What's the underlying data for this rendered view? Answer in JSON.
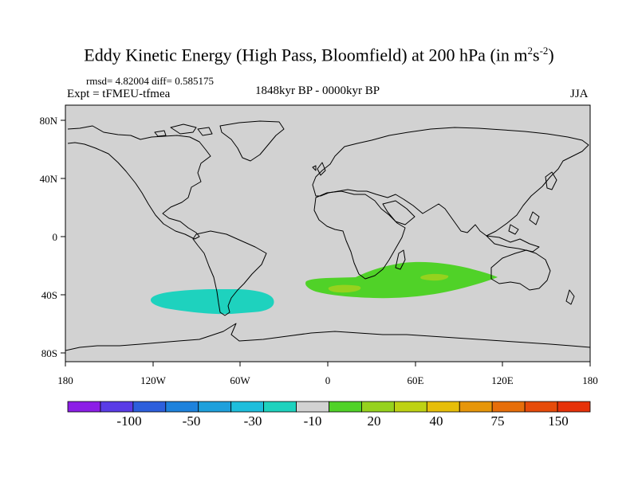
{
  "title": {
    "prefix": "Eddy Kinetic Energy (High Pass, Bloomfield) at 200 hPa (in m",
    "sup1": "2",
    "mid": "s",
    "sup2": "-2",
    "suffix": ")"
  },
  "stats": "rmsd= 4.82004 diff= 0.585175",
  "expt": "Expt = tFMEU-tfmea",
  "period": "1848kyr BP - 0000kyr BP",
  "season": "JJA",
  "axes": {
    "x_ticks": [
      "180",
      "120W",
      "60W",
      "0",
      "60E",
      "120E",
      "180"
    ],
    "y_ticks": [
      "80N",
      "40N",
      "0",
      "40S",
      "80S"
    ]
  },
  "colorbar": {
    "colors": [
      "#8c1ee6",
      "#5a3ce6",
      "#2d5fdc",
      "#1e82dc",
      "#1ea0dc",
      "#1ebedc",
      "#1ed2be",
      "#d2d2d2",
      "#50d228",
      "#96d21e",
      "#bed214",
      "#e6be0a",
      "#e6960a",
      "#e66e0a",
      "#e64b0a",
      "#e6320a"
    ],
    "labels": [
      "-100",
      "-50",
      "-30",
      "-10",
      "20",
      "40",
      "75",
      "150"
    ]
  },
  "anomalies": [
    {
      "name": "south-atlantic-pacific-negative",
      "value_range": "-10 to -30",
      "color": "#1ed2be"
    },
    {
      "name": "indian-ocean-positive",
      "value_range": "10 to 20",
      "color": "#50d228"
    },
    {
      "name": "indian-ocean-positive-core",
      "value_range": "20 to 40",
      "color": "#96d21e"
    }
  ],
  "colors": {
    "land_ocean": "#d2d2d2",
    "coast": "#000000"
  }
}
